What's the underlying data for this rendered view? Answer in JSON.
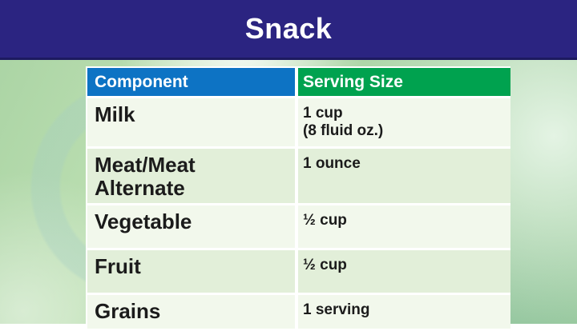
{
  "title": "Snack",
  "table": {
    "header": {
      "component": "Component",
      "serving": "Serving Size"
    },
    "rows": [
      {
        "component": "Milk",
        "serving": "1 cup\n(8 fluid oz.)"
      },
      {
        "component": "Meat/Meat\nAlternate",
        "serving": "1 ounce"
      },
      {
        "component": "Vegetable",
        "serving": "½ cup"
      },
      {
        "component": "Fruit",
        "serving": "½ cup"
      },
      {
        "component": "Grains",
        "serving": "1 serving"
      }
    ]
  },
  "colors": {
    "banner_bg": "#2b2481",
    "banner_edge": "#1d1a60",
    "header_component_bg": "#0d73c4",
    "header_serving_bg": "#00a24f",
    "row_light_bg": "#f2f8ec",
    "row_shaded_bg": "#e2efd9",
    "cell_border": "#ffffff",
    "text_dark": "#1b1b1b",
    "text_light": "#ffffff"
  }
}
